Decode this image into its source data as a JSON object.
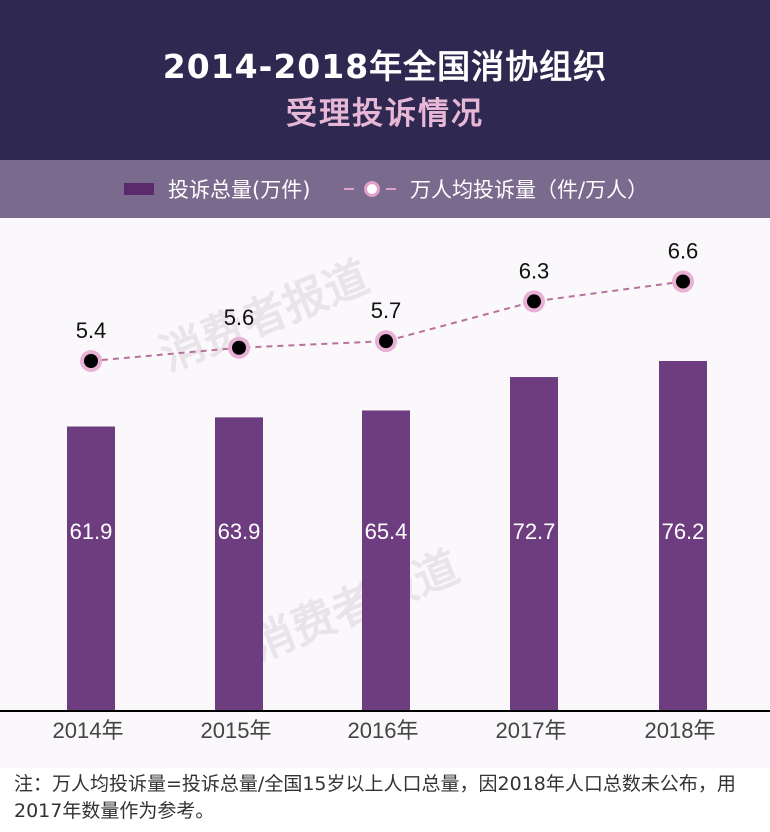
{
  "header": {
    "title_line1": "2014-2018年全国消协组织",
    "title_line2": "受理投诉情况"
  },
  "legend": {
    "bar_label": "投诉总量(万件)",
    "line_label": "万人均投诉量（件/万人）"
  },
  "watermark": "消费者报道",
  "note": "注：万人均投诉量=投诉总量/全国15岁以上人口总量，因2018年人口总数未公布，用2017年数量作为参考。",
  "chart_data": {
    "type": "bar",
    "categories": [
      "2014年",
      "2015年",
      "2016年",
      "2017年",
      "2018年"
    ],
    "series": [
      {
        "name": "投诉总量(万件)",
        "type": "bar",
        "values": [
          61.9,
          63.9,
          65.4,
          72.7,
          76.2
        ],
        "labels": [
          "61.9",
          "63.9",
          "65.4",
          "72.7",
          "76.2"
        ]
      },
      {
        "name": "万人均投诉量（件/万人）",
        "type": "line",
        "values": [
          5.4,
          5.6,
          5.7,
          6.3,
          6.6
        ],
        "labels": [
          "5.4",
          "5.6",
          "5.7",
          "6.3",
          "6.6"
        ]
      }
    ],
    "colors": {
      "bar": "#6e3d7f",
      "line": "#b9719c",
      "marker_fill": "#000000",
      "marker_ring": "#e8b0d4"
    }
  }
}
